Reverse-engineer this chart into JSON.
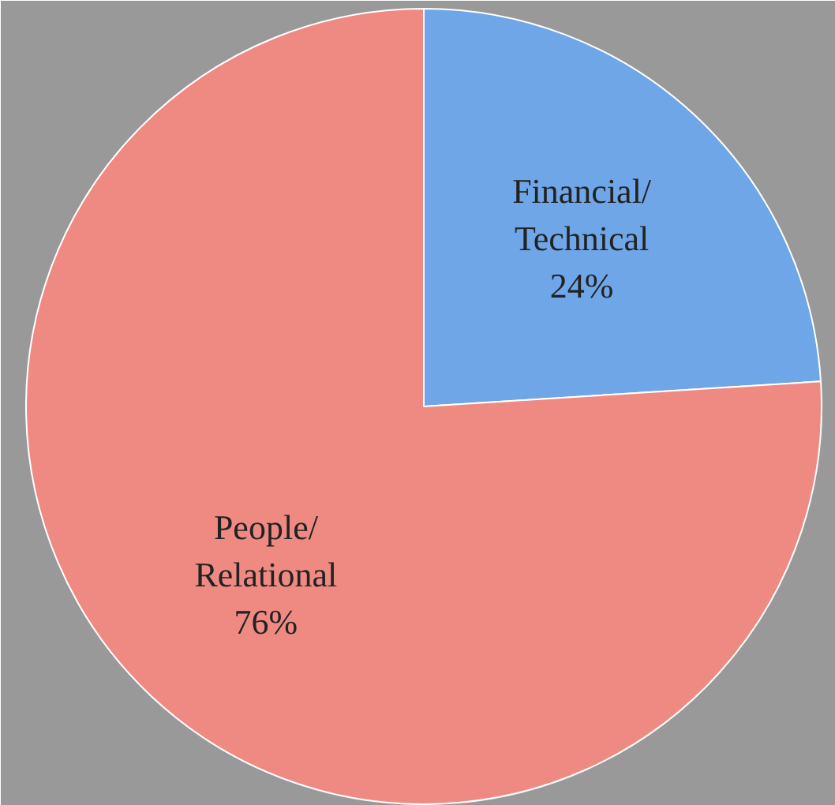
{
  "chart_data": {
    "type": "pie",
    "categories": [
      "Financial/Technical",
      "People/Relational"
    ],
    "values": [
      24,
      76
    ],
    "colors": [
      "#6fa6e8",
      "#ef8a83"
    ],
    "value_labels": [
      "24%",
      "76%"
    ]
  }
}
